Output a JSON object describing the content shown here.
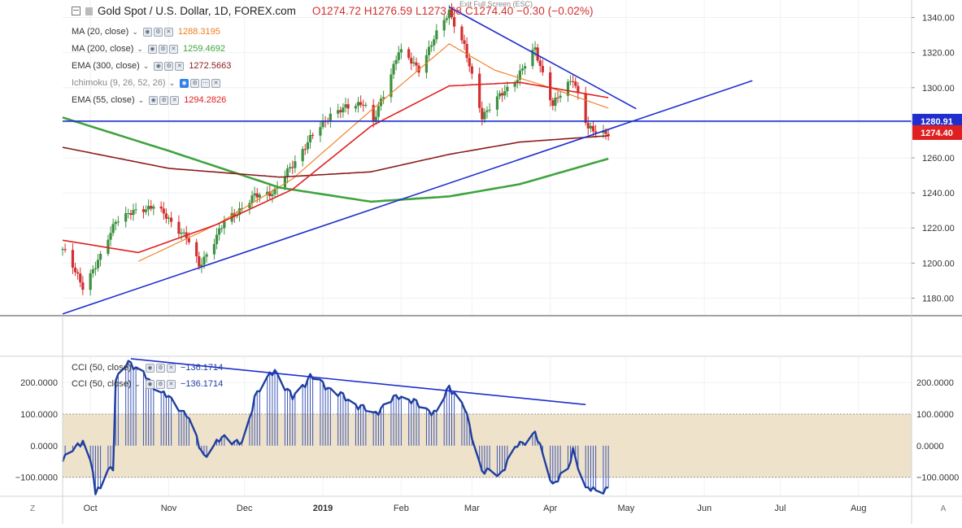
{
  "header": {
    "symbol": "Gold Spot / U.S. Dollar, 1D, FOREX.com",
    "ohlc": "O1274.72  H1276.59  L1273.68  C1274.40  −0.30 (−0.02%)",
    "exit_fullscreen": "Exit Full Screen (ESC)"
  },
  "indicators": [
    {
      "name": "MA (20, close)",
      "value": "1288.3195",
      "color": "#f07b1c"
    },
    {
      "name": "MA (200, close)",
      "value": "1259.4692",
      "color": "#3fa33f"
    },
    {
      "name": "EMA (300, close)",
      "value": "1272.5663",
      "color": "#8b1a1a"
    },
    {
      "name": "Ichimoku (9, 26, 52, 26)",
      "value": "",
      "color": "#888888"
    },
    {
      "name": "EMA (55, close)",
      "value": "1294.2826",
      "color": "#e02020"
    }
  ],
  "cci_legend": [
    {
      "name": "CCI (50, close)",
      "value": "−136.1714"
    },
    {
      "name": "CCI (50, close)",
      "value": "−136.1714"
    }
  ],
  "price_axis": {
    "ticks": [
      "1340.00",
      "1320.00",
      "1300.00",
      "1280.00",
      "1260.00",
      "1240.00",
      "1220.00",
      "1200.00",
      "1180.00"
    ],
    "marker_hline": "1280.91",
    "marker_last": "1274.40"
  },
  "cci_axis": {
    "ticks": [
      "200.0000",
      "100.0000",
      "0.0000",
      "−100.0000"
    ]
  },
  "time_axis": [
    "Oct",
    "Nov",
    "Dec",
    "2019",
    "Feb",
    "Mar",
    "Apr",
    "May",
    "Jun",
    "Jul",
    "Aug"
  ],
  "corner_left": "Z",
  "corner_right": "A",
  "colors": {
    "up": "#3d9140",
    "down": "#d32f2f",
    "trendline": "#1f2ecc",
    "cci": "#1f3fa0",
    "band": "#eee2ca"
  },
  "chart_data": {
    "type": "candlestick",
    "title": "Gold Spot / U.S. Dollar, 1D, FOREX.com",
    "ylim": [
      1170,
      1350
    ],
    "x_range": [
      "2018-09-20",
      "2019-08-22"
    ],
    "ohlc_anchors": [
      [
        "2018-09-20",
        1208
      ],
      [
        "2018-09-28",
        1187
      ],
      [
        "2018-10-05",
        1203
      ],
      [
        "2018-10-11",
        1225
      ],
      [
        "2018-10-26",
        1233
      ],
      [
        "2018-11-08",
        1215
      ],
      [
        "2018-11-13",
        1198
      ],
      [
        "2018-11-23",
        1223
      ],
      [
        "2018-12-05",
        1238
      ],
      [
        "2018-12-13",
        1241
      ],
      [
        "2018-12-26",
        1269
      ],
      [
        "2019-01-04",
        1285
      ],
      [
        "2019-01-17",
        1292
      ],
      [
        "2019-01-21",
        1280
      ],
      [
        "2019-01-31",
        1321
      ],
      [
        "2019-02-08",
        1311
      ],
      [
        "2019-02-20",
        1344
      ],
      [
        "2019-02-26",
        1323
      ],
      [
        "2019-03-05",
        1284
      ],
      [
        "2019-03-19",
        1306
      ],
      [
        "2019-03-26",
        1322
      ],
      [
        "2019-04-02",
        1290
      ],
      [
        "2019-04-10",
        1306
      ],
      [
        "2019-04-16",
        1276
      ],
      [
        "2019-04-24",
        1274.4
      ]
    ],
    "series": [
      {
        "name": "MA (20, close)",
        "last": 1288.3195,
        "points": [
          [
            "2018-10-20",
            1201
          ],
          [
            "2018-11-20",
            1222
          ],
          [
            "2018-12-20",
            1248
          ],
          [
            "2019-01-20",
            1287
          ],
          [
            "2019-02-20",
            1325
          ],
          [
            "2019-03-10",
            1310
          ],
          [
            "2019-04-01",
            1300
          ],
          [
            "2019-04-24",
            1288.3
          ]
        ]
      },
      {
        "name": "MA (200, close)",
        "last": 1259.4692,
        "points": [
          [
            "2018-09-20",
            1283
          ],
          [
            "2018-11-01",
            1264
          ],
          [
            "2018-12-15",
            1243
          ],
          [
            "2019-01-20",
            1235
          ],
          [
            "2019-02-20",
            1238
          ],
          [
            "2019-03-20",
            1245
          ],
          [
            "2019-04-24",
            1259.5
          ]
        ]
      },
      {
        "name": "EMA (300, close)",
        "last": 1272.5663,
        "points": [
          [
            "2018-09-20",
            1266
          ],
          [
            "2018-11-01",
            1254
          ],
          [
            "2018-12-15",
            1249
          ],
          [
            "2019-01-20",
            1252
          ],
          [
            "2019-02-20",
            1262
          ],
          [
            "2019-03-20",
            1269
          ],
          [
            "2019-04-24",
            1272.6
          ]
        ]
      },
      {
        "name": "EMA (55, close)",
        "last": 1294.2826,
        "points": [
          [
            "2018-09-20",
            1213
          ],
          [
            "2018-10-20",
            1206
          ],
          [
            "2018-11-20",
            1222
          ],
          [
            "2018-12-20",
            1242
          ],
          [
            "2019-01-20",
            1278
          ],
          [
            "2019-02-20",
            1301
          ],
          [
            "2019-03-20",
            1303
          ],
          [
            "2019-04-24",
            1294.3
          ]
        ]
      }
    ],
    "trendlines": [
      {
        "name": "support",
        "points": [
          [
            "2018-09-20",
            1171
          ],
          [
            "2019-06-20",
            1304
          ]
        ]
      },
      {
        "name": "resistance",
        "points": [
          [
            "2019-02-20",
            1346
          ],
          [
            "2019-05-05",
            1288
          ]
        ]
      },
      {
        "name": "horizontal",
        "points": [
          [
            "2018-09-20",
            1280.91
          ],
          [
            "2019-08-22",
            1280.91
          ]
        ]
      }
    ],
    "cci": {
      "name": "CCI (50, close)",
      "last": -136.1714,
      "ylim": [
        -160,
        280
      ],
      "band": [
        -100,
        100
      ],
      "anchors": [
        [
          "2018-09-20",
          -50
        ],
        [
          "2018-09-28",
          20
        ],
        [
          "2018-10-02",
          -80
        ],
        [
          "2018-10-03",
          -160
        ],
        [
          "2018-10-08",
          -70
        ],
        [
          "2018-10-10",
          -70
        ],
        [
          "2018-10-11",
          200
        ],
        [
          "2018-10-16",
          270
        ],
        [
          "2018-10-25",
          200
        ],
        [
          "2018-11-08",
          100
        ],
        [
          "2018-11-13",
          0
        ],
        [
          "2018-11-15",
          -30
        ],
        [
          "2018-11-23",
          30
        ],
        [
          "2018-12-01",
          0
        ],
        [
          "2018-12-05",
          160
        ],
        [
          "2018-12-13",
          240
        ],
        [
          "2018-12-20",
          150
        ],
        [
          "2018-12-27",
          220
        ],
        [
          "2019-01-10",
          150
        ],
        [
          "2019-01-21",
          100
        ],
        [
          "2019-01-31",
          160
        ],
        [
          "2019-02-08",
          130
        ],
        [
          "2019-02-15",
          100
        ],
        [
          "2019-02-20",
          190
        ],
        [
          "2019-02-26",
          120
        ],
        [
          "2019-03-05",
          -80
        ],
        [
          "2019-03-12",
          -90
        ],
        [
          "2019-03-19",
          0
        ],
        [
          "2019-03-26",
          40
        ],
        [
          "2019-04-02",
          -120
        ],
        [
          "2019-04-08",
          -80
        ],
        [
          "2019-04-10",
          -10
        ],
        [
          "2019-04-15",
          -140
        ],
        [
          "2019-04-24",
          -136.17
        ]
      ],
      "trendline": [
        [
          "2018-10-17",
          275
        ],
        [
          "2019-04-15",
          130
        ]
      ]
    }
  }
}
